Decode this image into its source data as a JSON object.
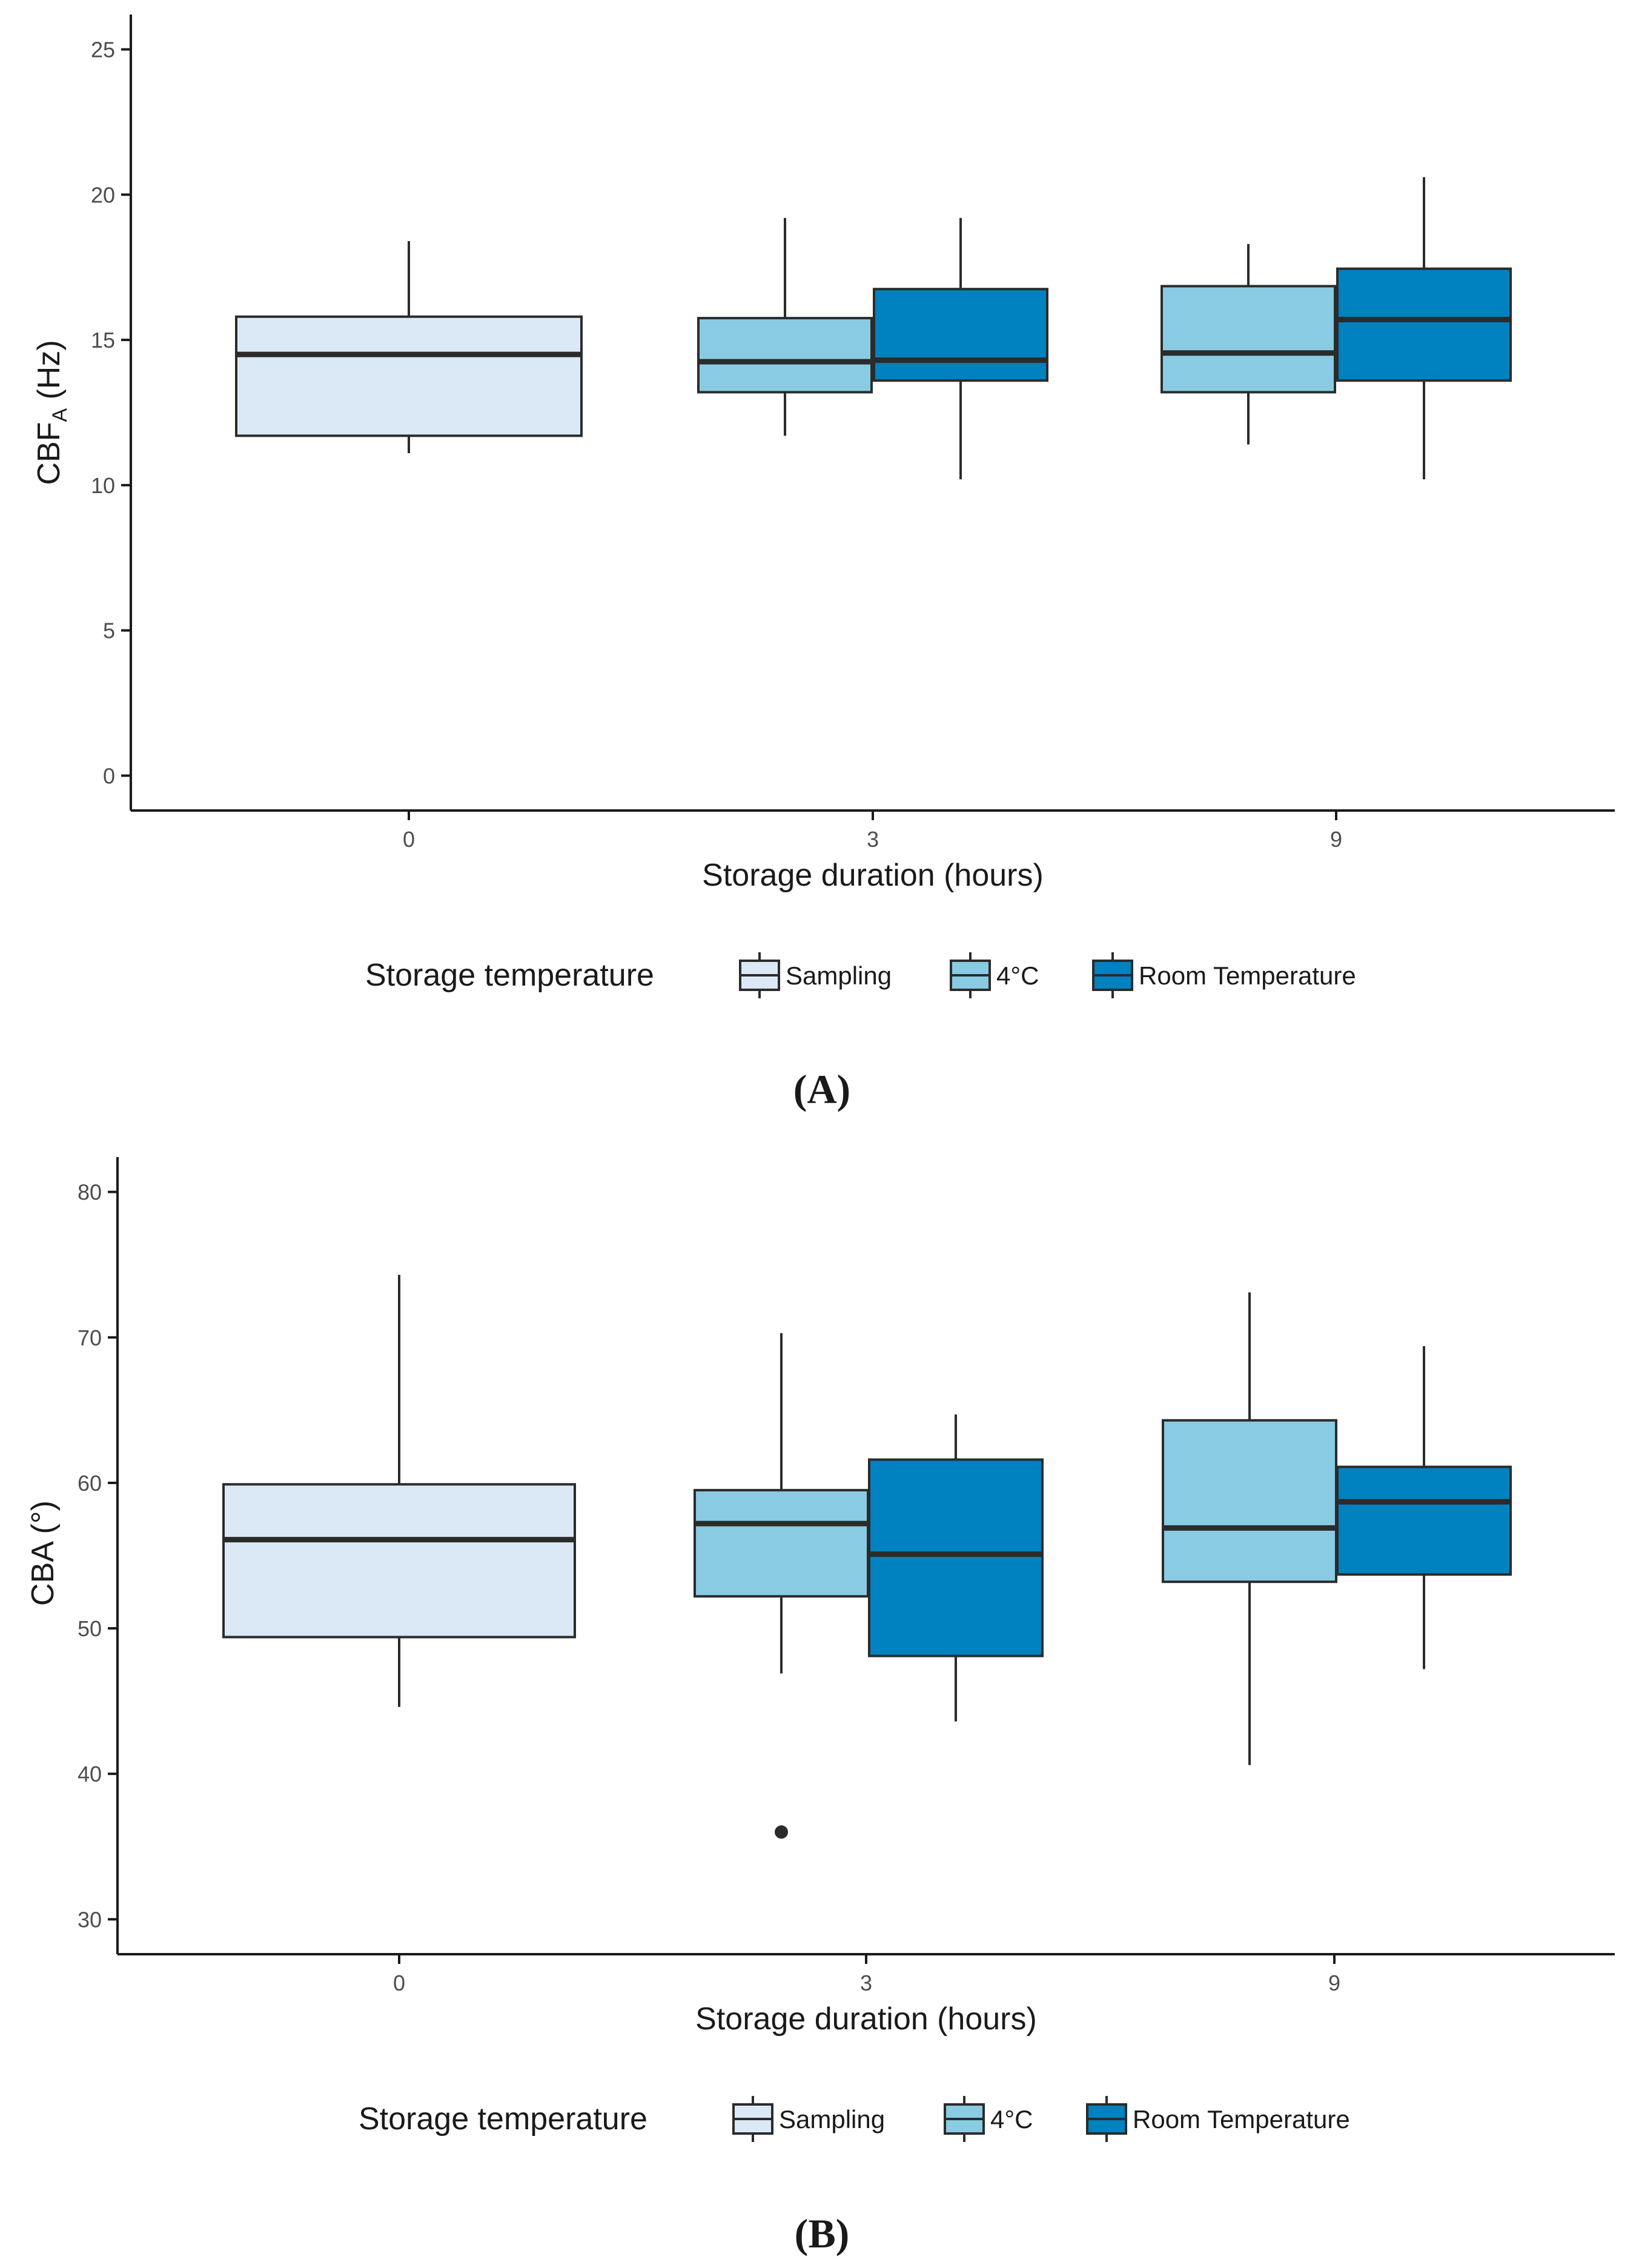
{
  "chart_data": [
    {
      "type": "box",
      "panel_label": "(A)",
      "ylabel_main": "CBF",
      "ylabel_sub": "A",
      "ylabel_unit": " (Hz)",
      "xlabel": "Storage duration (hours)",
      "ylim": [
        -1.2,
        26.2
      ],
      "yticks": [
        "0",
        "5",
        "10",
        "15",
        "20",
        "25"
      ],
      "categories": [
        "0",
        "3",
        "9"
      ],
      "legend": {
        "title": "Storage temperature",
        "entries": [
          "Sampling",
          "4°C",
          "Room Temperature"
        ],
        "colors": [
          "#dbe9f6",
          "#89cbe3",
          "#0081c0"
        ]
      },
      "boxes": [
        {
          "category": "0",
          "group": "Sampling",
          "whisker_low": 11.1,
          "q1": 11.7,
          "median": 14.5,
          "q3": 15.8,
          "whisker_high": 18.4,
          "outliers": []
        },
        {
          "category": "3",
          "group": "4°C",
          "whisker_low": 11.7,
          "q1": 13.2,
          "median": 14.25,
          "q3": 15.75,
          "whisker_high": 19.2,
          "outliers": []
        },
        {
          "category": "3",
          "group": "Room Temperature",
          "whisker_low": 10.2,
          "q1": 13.6,
          "median": 14.3,
          "q3": 16.75,
          "whisker_high": 19.2,
          "outliers": []
        },
        {
          "category": "9",
          "group": "4°C",
          "whisker_low": 11.4,
          "q1": 13.2,
          "median": 14.55,
          "q3": 16.85,
          "whisker_high": 18.3,
          "outliers": []
        },
        {
          "category": "9",
          "group": "Room Temperature",
          "whisker_low": 10.2,
          "q1": 13.6,
          "median": 15.7,
          "q3": 17.45,
          "whisker_high": 20.6,
          "outliers": []
        }
      ]
    },
    {
      "type": "box",
      "panel_label": "(B)",
      "ylabel_main": "CBA (°)",
      "ylabel_sub": "",
      "ylabel_unit": "",
      "xlabel": "Storage duration (hours)",
      "ylim": [
        27.6,
        82.4
      ],
      "yticks": [
        "30",
        "40",
        "50",
        "60",
        "70",
        "80"
      ],
      "categories": [
        "0",
        "3",
        "9"
      ],
      "legend": {
        "title": "Storage temperature",
        "entries": [
          "Sampling",
          "4°C",
          "Room Temperature"
        ],
        "colors": [
          "#dbe9f6",
          "#89cbe3",
          "#0081c0"
        ]
      },
      "boxes": [
        {
          "category": "0",
          "group": "Sampling",
          "whisker_low": 44.6,
          "q1": 49.4,
          "median": 56.1,
          "q3": 59.9,
          "whisker_high": 74.3,
          "outliers": []
        },
        {
          "category": "3",
          "group": "4°C",
          "whisker_low": 46.9,
          "q1": 52.2,
          "median": 57.2,
          "q3": 59.5,
          "whisker_high": 70.3,
          "outliers": [
            36.0
          ]
        },
        {
          "category": "3",
          "group": "Room Temperature",
          "whisker_low": 43.6,
          "q1": 48.1,
          "median": 55.1,
          "q3": 61.6,
          "whisker_high": 64.7,
          "outliers": []
        },
        {
          "category": "9",
          "group": "4°C",
          "whisker_low": 40.6,
          "q1": 53.2,
          "median": 56.9,
          "q3": 64.3,
          "whisker_high": 73.1,
          "outliers": []
        },
        {
          "category": "9",
          "group": "Room Temperature",
          "whisker_low": 47.2,
          "q1": 53.7,
          "median": 58.7,
          "q3": 61.1,
          "whisker_high": 69.4,
          "outliers": []
        }
      ]
    }
  ]
}
